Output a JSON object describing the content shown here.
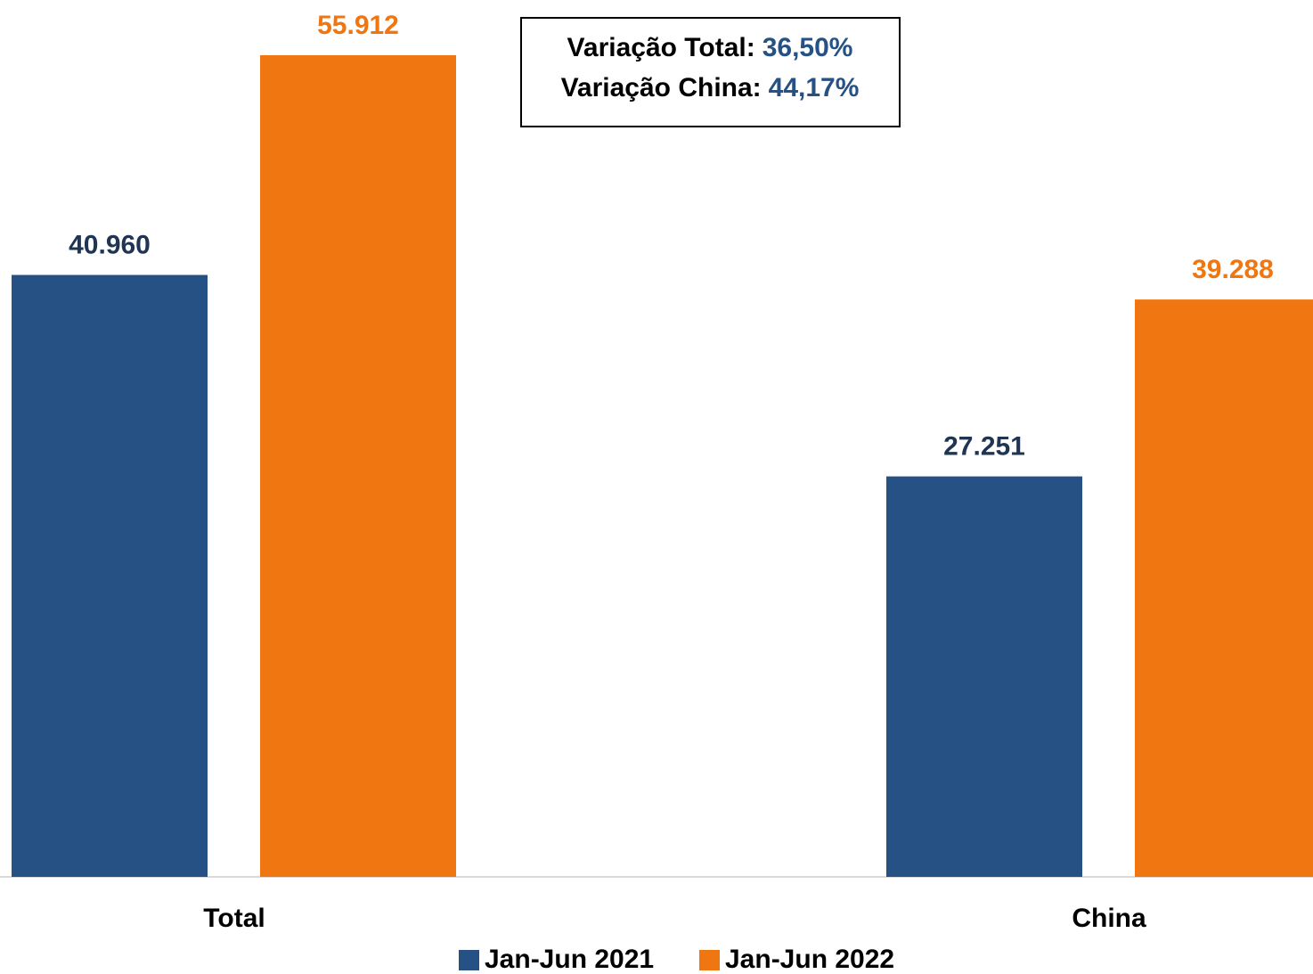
{
  "chart_data": {
    "type": "bar",
    "categories": [
      "Total",
      "China"
    ],
    "series": [
      {
        "name": "Jan-Jun 2021",
        "color": "#265185",
        "label_color": "#1f3553",
        "values": [
          40960,
          27251
        ],
        "value_labels": [
          "40.960",
          "27.251"
        ]
      },
      {
        "name": "Jan-Jun 2022",
        "color": "#ef7611",
        "label_color": "#ef7611",
        "values": [
          55912,
          39288
        ],
        "value_labels": [
          "55.912",
          "39.288"
        ]
      }
    ],
    "ylim": [
      0,
      56000
    ],
    "annotation": [
      {
        "text": "Variação Total:",
        "value": "36,50%"
      },
      {
        "text": "Variação China:",
        "value": "44,17%"
      }
    ],
    "annotation_value_color": "#265185",
    "legend": "bottom"
  }
}
